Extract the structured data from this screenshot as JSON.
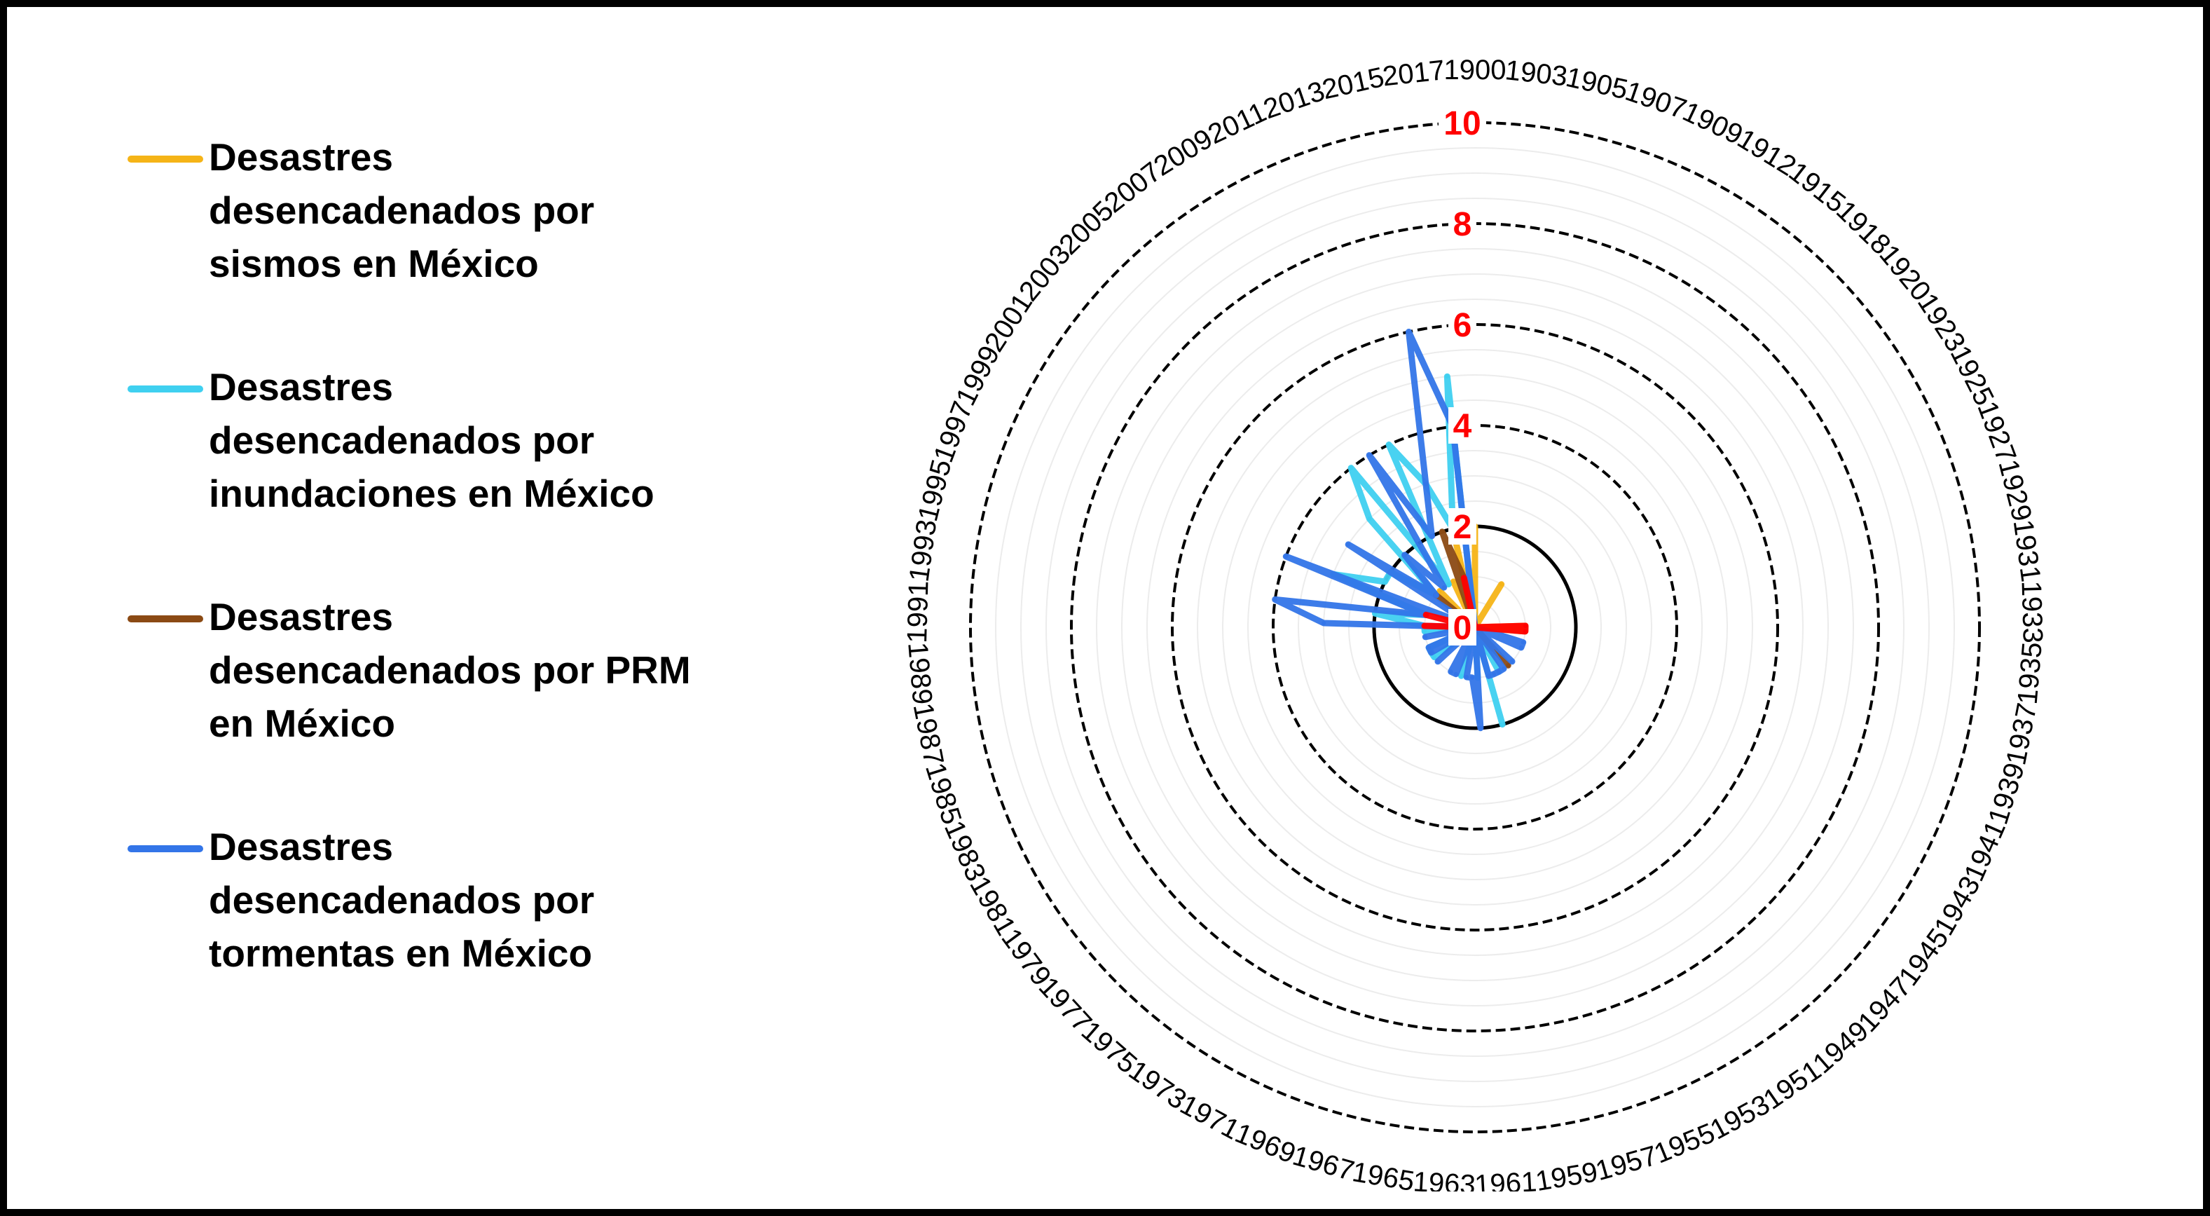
{
  "legend": {
    "items": [
      {
        "label": "Desastres\ndesencadenados por\nsismos en México",
        "color": "#f5b417"
      },
      {
        "label": "Desastres\ndesencadenados por\ninundaciones en México",
        "color": "#3fd0f0"
      },
      {
        "label": "Desastres\ndesencadenados por PRM\nen México",
        "color": "#8b4a14"
      },
      {
        "label": "Desastres\ndesencadenados por\ntormentas en México",
        "color": "#3375e8"
      }
    ]
  },
  "chart_data": {
    "type": "radar",
    "title": "",
    "radial_ticks": [
      "0",
      "2",
      "4",
      "6",
      "8",
      "10"
    ],
    "rlim": [
      0,
      10
    ],
    "direction": "clockwise",
    "start": "top",
    "categories": [
      "1900",
      "1903",
      "1905",
      "1907",
      "1909",
      "1912",
      "1915",
      "1918",
      "1920",
      "1923",
      "1925",
      "1927",
      "1929",
      "1931",
      "1933",
      "1935",
      "1937",
      "1939",
      "1941",
      "1943",
      "1945",
      "1947",
      "1949",
      "1951",
      "1953",
      "1955",
      "1957",
      "1959",
      "1961",
      "1963",
      "1965",
      "1967",
      "1969",
      "1971",
      "1973",
      "1975",
      "1977",
      "1979",
      "1981",
      "1983",
      "1985",
      "1987",
      "1989",
      "1991",
      "1993",
      "1995",
      "1997",
      "1999",
      "2001",
      "2003",
      "2005",
      "2007",
      "2009",
      "2011",
      "2013",
      "2015",
      "2017"
    ],
    "series": [
      {
        "name": "Desastres desencadenados por sismos en México",
        "color": "#f5b417",
        "values": [
          2,
          0,
          0,
          0,
          0,
          1,
          0,
          0,
          0,
          0,
          0,
          0,
          0,
          0,
          1,
          1,
          0,
          0,
          0,
          0,
          0,
          0,
          0,
          0,
          0,
          0,
          0,
          0,
          0,
          0,
          0,
          0,
          0,
          0,
          0,
          0,
          0,
          0,
          0,
          0,
          0,
          0,
          0,
          0,
          0,
          0,
          0,
          0,
          0,
          0,
          1,
          0,
          0,
          1,
          0,
          2,
          0
        ]
      },
      {
        "name": "Desastres desencadenados por inundaciones en México",
        "color": "#3fd0f0",
        "values": [
          0,
          0,
          0,
          0,
          0,
          0,
          0,
          0,
          0,
          0,
          0,
          0,
          0,
          0,
          0,
          0,
          0,
          0,
          0,
          0,
          0,
          0,
          0,
          0,
          1,
          0,
          2,
          0,
          1,
          0,
          0,
          1,
          0,
          0,
          0,
          0,
          0,
          1,
          1,
          1,
          0,
          0,
          1,
          1,
          2,
          1,
          3,
          2,
          2,
          1,
          3,
          4,
          1,
          4,
          3,
          2,
          5
        ]
      },
      {
        "name": "Desastres desencadenados por PRM en México",
        "color": "#8b4a14",
        "values": [
          0,
          0,
          0,
          0,
          0,
          0,
          0,
          0,
          0,
          0,
          0,
          0,
          0,
          0,
          0,
          0,
          0,
          0,
          0,
          0,
          0,
          0,
          1,
          0,
          0,
          0,
          0,
          0,
          0,
          0,
          0,
          0,
          0,
          0,
          0,
          0,
          0,
          0,
          0,
          0,
          0,
          0,
          0,
          0,
          0,
          0,
          0,
          0,
          0,
          1,
          0,
          0,
          0,
          0,
          2,
          1,
          0
        ]
      },
      {
        "name": "Desastres desencadenados por tormentas en México",
        "color": "#3375e8",
        "values": [
          0,
          0,
          0,
          0,
          0,
          0,
          0,
          0,
          0,
          0,
          0,
          0,
          0,
          0,
          0,
          0,
          0,
          1,
          1,
          0,
          0,
          1,
          0,
          1,
          1,
          1,
          1,
          0,
          2,
          1,
          1,
          0,
          1,
          1,
          0,
          0,
          1,
          0,
          1,
          1,
          0,
          1,
          0,
          3,
          4,
          1,
          4,
          0,
          3,
          1,
          2,
          1,
          4,
          2,
          3,
          6,
          4
        ]
      },
      {
        "name": "",
        "color": "#ff0000",
        "values": [
          0,
          0,
          0,
          0,
          0,
          0,
          0,
          0,
          0,
          0,
          0,
          0,
          0,
          0,
          1,
          1,
          0,
          0,
          0,
          0,
          0,
          0,
          0,
          0,
          0,
          0,
          0,
          0,
          0,
          0,
          0,
          0,
          0,
          0,
          0,
          0,
          0,
          0,
          0,
          0,
          0,
          0,
          0,
          1,
          0,
          1,
          0,
          0,
          0,
          0,
          0,
          0,
          0,
          0,
          0,
          1,
          0
        ]
      }
    ],
    "grid": true,
    "legend_position": "left"
  }
}
